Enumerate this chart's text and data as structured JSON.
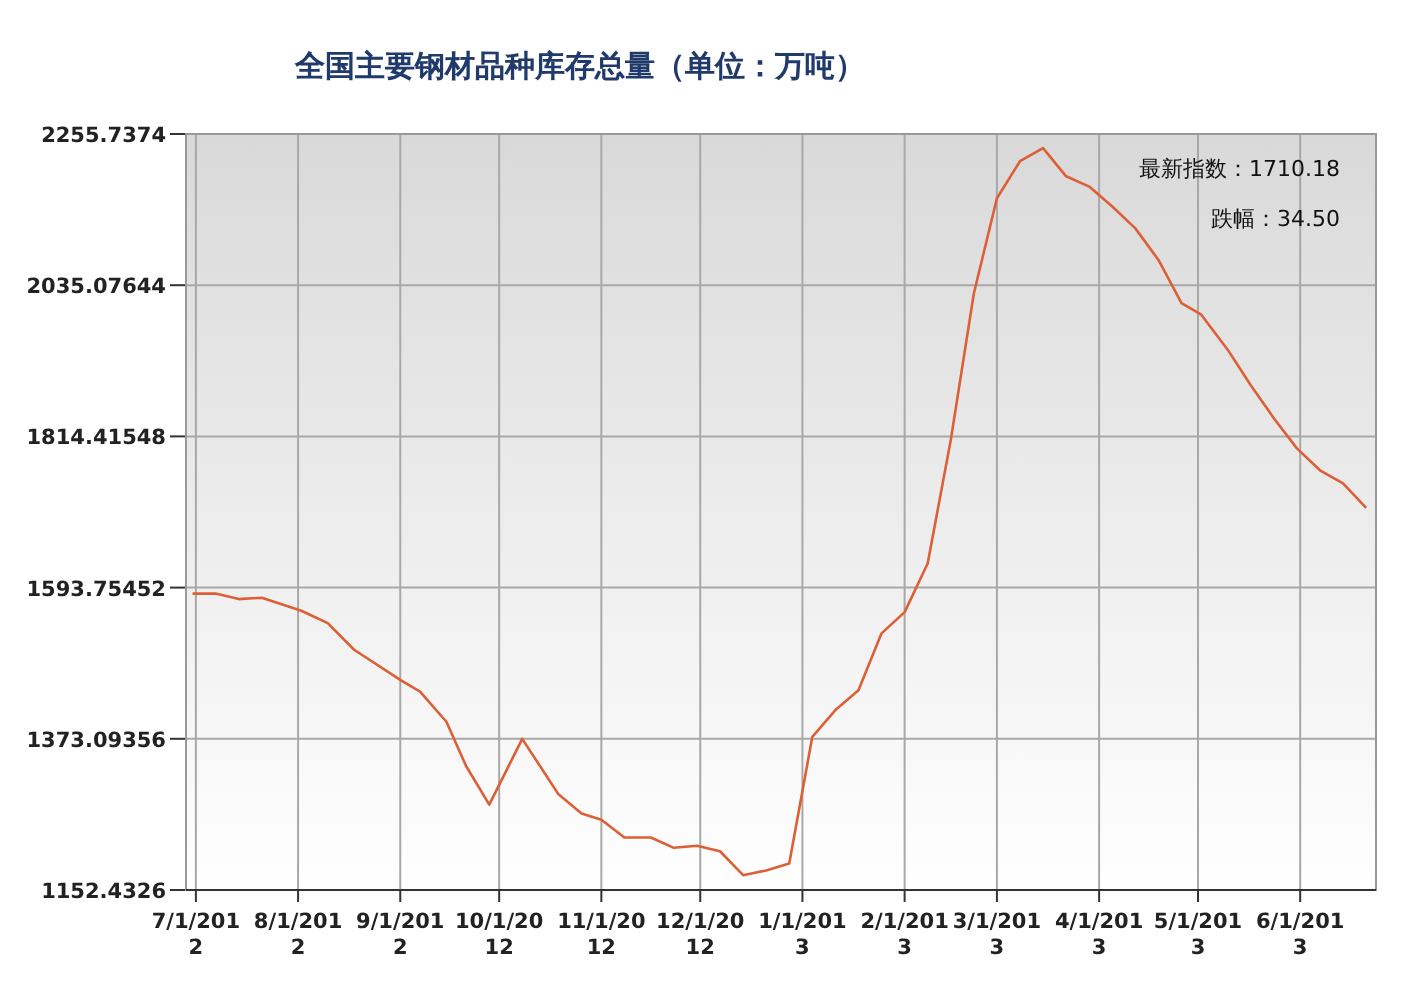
{
  "chart_data": {
    "type": "line",
    "title": "全国主要钢材品种库存总量（单位：万吨）",
    "x": [
      "2012-06-30",
      "2012-07-07",
      "2012-07-14",
      "2012-07-21",
      "2012-08-02",
      "2012-08-10",
      "2012-08-18",
      "2012-09-01",
      "2012-09-07",
      "2012-09-15",
      "2012-09-21",
      "2012-09-28",
      "2012-10-08",
      "2012-10-19",
      "2012-10-26",
      "2012-11-01",
      "2012-11-08",
      "2012-11-16",
      "2012-11-23",
      "2012-11-30",
      "2012-12-07",
      "2012-12-14",
      "2012-12-21",
      "2012-12-28",
      "2013-01-04",
      "2013-01-11",
      "2013-01-18",
      "2013-01-25",
      "2013-02-01",
      "2013-02-08",
      "2013-02-15",
      "2013-02-22",
      "2013-03-01",
      "2013-03-08",
      "2013-03-15",
      "2013-03-22",
      "2013-03-29",
      "2013-04-05",
      "2013-04-12",
      "2013-04-19",
      "2013-04-26",
      "2013-05-02",
      "2013-05-10",
      "2013-05-17",
      "2013-05-24",
      "2013-05-31",
      "2013-06-07",
      "2013-06-14",
      "2013-06-21"
    ],
    "values": [
      1585,
      1585,
      1577,
      1579,
      1560,
      1542,
      1503,
      1459,
      1442,
      1398,
      1333,
      1277,
      1373,
      1292,
      1264,
      1255,
      1229,
      1229,
      1214,
      1217,
      1209,
      1174,
      1181,
      1191,
      1376,
      1415,
      1444,
      1527,
      1558,
      1629,
      1809,
      2023,
      2162,
      2216,
      2235,
      2194,
      2179,
      2150,
      2118,
      2072,
      2009,
      1992,
      1941,
      1889,
      1841,
      1797,
      1765,
      1746,
      1710.18
    ],
    "color": "#dd5f35",
    "line_style": "solid",
    "xlim": [
      "2012-06-28",
      "2013-06-24"
    ],
    "xticks": [
      {
        "value": "2012-07-01",
        "label": "7/1/2012"
      },
      {
        "value": "2012-08-01",
        "label": "8/1/2012"
      },
      {
        "value": "2012-09-01",
        "label": "9/1/2012"
      },
      {
        "value": "2012-10-01",
        "label": "10/1/2012"
      },
      {
        "value": "2012-11-01",
        "label": "11/1/2012"
      },
      {
        "value": "2012-12-01",
        "label": "12/1/2012"
      },
      {
        "value": "2013-01-01",
        "label": "1/1/2013"
      },
      {
        "value": "2013-02-01",
        "label": "2/1/2013"
      },
      {
        "value": "2013-03-01",
        "label": "3/1/2013"
      },
      {
        "value": "2013-04-01",
        "label": "4/1/2013"
      },
      {
        "value": "2013-05-01",
        "label": "5/1/2013"
      },
      {
        "value": "2013-06-01",
        "label": "6/1/2013"
      }
    ],
    "ylim": [
      1152.4326,
      2255.7374
    ],
    "yticks": [
      1152.4326,
      1373.09356,
      1593.75452,
      1814.41548,
      2035.07644,
      2255.7374
    ],
    "grid": true,
    "annotations": [
      "最新指数：1710.18",
      "跌幅：34.50"
    ]
  }
}
